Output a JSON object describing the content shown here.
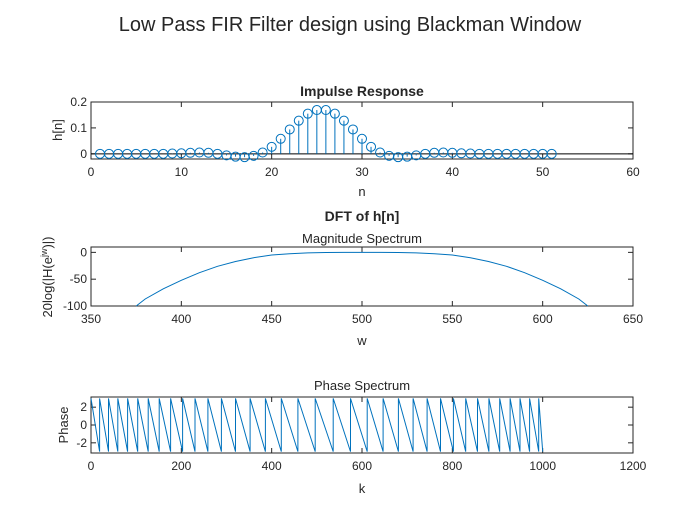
{
  "figure": {
    "title": "Low Pass FIR Filter design using Blackman Window"
  },
  "colors": {
    "series": "#0072BD",
    "axes": "#262626",
    "background": "#ffffff",
    "baseline": "#000000"
  },
  "chart_data": [
    {
      "type": "stem",
      "title": "Impulse Response",
      "title_bold": true,
      "xlabel": "n",
      "ylabel": "h[n]",
      "xlim": [
        0,
        60
      ],
      "ylim": [
        -0.02,
        0.2
      ],
      "xticks": [
        0,
        10,
        20,
        30,
        40,
        50,
        60
      ],
      "yticks": [
        0,
        0.1,
        0.2
      ],
      "ytick_labels": [
        "0",
        "0.1",
        "0.2"
      ],
      "grid": false,
      "marker": "circle",
      "x": [
        1,
        2,
        3,
        4,
        5,
        6,
        7,
        8,
        9,
        10,
        11,
        12,
        13,
        14,
        15,
        16,
        17,
        18,
        19,
        20,
        21,
        22,
        23,
        24,
        25,
        26,
        27,
        28,
        29,
        30,
        31,
        32,
        33,
        34,
        35,
        36,
        37,
        38,
        39,
        40,
        41,
        42,
        43,
        44,
        45,
        46,
        47,
        48,
        49,
        50,
        51
      ],
      "values": [
        0.0,
        0.0,
        0.0,
        0.0,
        0.0,
        0.0,
        0.0,
        0.0,
        0.001,
        0.002,
        0.004,
        0.005,
        0.004,
        0.0,
        -0.006,
        -0.011,
        -0.013,
        -0.008,
        0.005,
        0.027,
        0.058,
        0.094,
        0.128,
        0.155,
        0.169,
        0.169,
        0.155,
        0.128,
        0.094,
        0.058,
        0.027,
        0.005,
        -0.008,
        -0.013,
        -0.011,
        -0.006,
        0.0,
        0.004,
        0.005,
        0.004,
        0.002,
        0.001,
        0.0,
        0.0,
        0.0,
        0.0,
        0.0,
        0.0,
        0.0,
        0.0,
        0.0
      ]
    },
    {
      "type": "line",
      "title": "Magnitude Spectrum",
      "suptitle": "DFT of h[n]",
      "xlabel": "w",
      "ylabel": "20log(|H(e^{jw})|)",
      "ylabel_parts": {
        "pre": "20log(|H(e",
        "sup": "jw",
        "post": ")|)"
      },
      "xlim": [
        350,
        650
      ],
      "ylim": [
        -100,
        10
      ],
      "xticks": [
        350,
        400,
        450,
        500,
        550,
        600,
        650
      ],
      "yticks": [
        -100,
        -50,
        0
      ],
      "grid": false,
      "x": [
        375,
        380,
        390,
        400,
        410,
        420,
        430,
        440,
        450,
        460,
        470,
        480,
        490,
        500,
        510,
        520,
        530,
        540,
        550,
        560,
        570,
        580,
        590,
        600,
        610,
        620,
        625
      ],
      "values": [
        -100,
        -87,
        -68,
        -52,
        -38,
        -26,
        -17,
        -10,
        -5,
        -2.5,
        -1,
        -0.3,
        0,
        0,
        0,
        -0.3,
        -1,
        -2.5,
        -5,
        -10,
        -17,
        -26,
        -38,
        -52,
        -68,
        -87,
        -100
      ]
    },
    {
      "type": "line",
      "title": "Phase Spectrum",
      "xlabel": "k",
      "ylabel": "Phase",
      "xlim": [
        0,
        1200
      ],
      "ylim": [
        -3.1416,
        3.1416
      ],
      "xticks": [
        0,
        200,
        400,
        600,
        800,
        1000,
        1200
      ],
      "yticks": [
        -2,
        0,
        2
      ],
      "grid": false,
      "description_of_shape": "sawtooth wrapping between -pi and pi",
      "period_samples_center": 40,
      "period_samples_edges": 19,
      "k_range": [
        0,
        1000
      ]
    }
  ]
}
